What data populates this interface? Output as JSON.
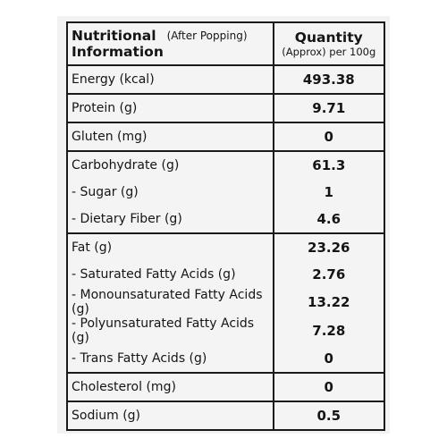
{
  "header": {
    "name_title_line1": "Nutritional",
    "name_title_line2": "Information",
    "name_note": "(After Popping)",
    "qty_title": "Quantity",
    "qty_unit": "(Approx) per 100g"
  },
  "rows": [
    {
      "label": "Energy (kcal)",
      "value": "493.38"
    },
    {
      "label": "Protein (g)",
      "value": "9.71"
    },
    {
      "label": "Gluten (mg)",
      "value": "0"
    },
    {
      "label": "Carbohydrate (g)",
      "value": "61.3"
    },
    {
      "label": "- Sugar (g)",
      "value": "1"
    },
    {
      "label": "- Dietary Fiber (g)",
      "value": "4.6"
    },
    {
      "label": "Fat (g)",
      "value": "23.26"
    },
    {
      "label": "- Saturated Fatty Acids (g)",
      "value": "2.76"
    },
    {
      "label": "- Monounsaturated Fatty Acids (g)",
      "value": "13.22"
    },
    {
      "label": "- Polyunsaturated Fatty Acids (g)",
      "value": "7.28"
    },
    {
      "label": "- Trans Fatty Acids (g)",
      "value": "0"
    },
    {
      "label": "Cholesterol (mg)",
      "value": "0"
    },
    {
      "label": "Sodium (g)",
      "value": "0.5"
    }
  ]
}
